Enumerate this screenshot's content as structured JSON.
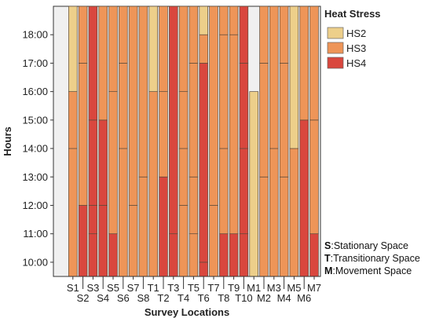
{
  "chart_data": {
    "type": "bar",
    "orientation": "stacked-vertical",
    "xlabel": "Survey Locations",
    "ylabel": "Hours",
    "y_unit": "hour of day",
    "ylim": [
      9.5,
      19.0
    ],
    "yticks": [
      {
        "value": 10,
        "label": "10:00"
      },
      {
        "value": 11,
        "label": "11:00"
      },
      {
        "value": 12,
        "label": "12:00"
      },
      {
        "value": 13,
        "label": "13:00"
      },
      {
        "value": 14,
        "label": "14:00"
      },
      {
        "value": 15,
        "label": "15:00"
      },
      {
        "value": 16,
        "label": "16:00"
      },
      {
        "value": 17,
        "label": "17:00"
      },
      {
        "value": 18,
        "label": "18:00"
      }
    ],
    "categories": [
      "S1",
      "S2",
      "S3",
      "S4",
      "S5",
      "S6",
      "S7",
      "S8",
      "T1",
      "T2",
      "T3",
      "T4",
      "T5",
      "T6",
      "T7",
      "T8",
      "T9",
      "T10",
      "M1",
      "M2",
      "M3",
      "M4",
      "M5",
      "M6",
      "M7"
    ],
    "legend": {
      "title": "Heat Stress",
      "placement": "top-right",
      "entries": [
        {
          "name": "HS2",
          "color": "#EDCF8A"
        },
        {
          "name": "HS3",
          "color": "#EE9558"
        },
        {
          "name": "HS4",
          "color": "#D9473E"
        }
      ]
    },
    "series_colors": {
      "HS2": "#EDCF8A",
      "HS3": "#EE9558",
      "HS4": "#D9473E"
    },
    "bars": [
      {
        "category": "S1",
        "segments": [
          [
            "HS3",
            9.5,
            14
          ],
          [
            "HS3",
            14,
            16
          ],
          [
            "HS2",
            16,
            19
          ]
        ]
      },
      {
        "category": "S2",
        "segments": [
          [
            "HS4",
            9.5,
            12
          ],
          [
            "HS3",
            12,
            17
          ],
          [
            "HS3",
            17,
            19
          ]
        ]
      },
      {
        "category": "S3",
        "segments": [
          [
            "HS4",
            9.5,
            11
          ],
          [
            "HS4",
            11,
            12
          ],
          [
            "HS4",
            12,
            15
          ],
          [
            "HS4",
            15,
            19
          ]
        ]
      },
      {
        "category": "S4",
        "segments": [
          [
            "HS4",
            9.5,
            12
          ],
          [
            "HS4",
            12,
            15
          ],
          [
            "HS3",
            15,
            19
          ]
        ]
      },
      {
        "category": "S5",
        "segments": [
          [
            "HS4",
            9.5,
            11
          ],
          [
            "HS3",
            11,
            16
          ],
          [
            "HS3",
            16,
            19
          ]
        ]
      },
      {
        "category": "S6",
        "segments": [
          [
            "HS3",
            9.5,
            14
          ],
          [
            "HS3",
            14,
            17
          ],
          [
            "HS3",
            17,
            19
          ]
        ]
      },
      {
        "category": "S7",
        "segments": [
          [
            "HS3",
            9.5,
            12
          ],
          [
            "HS3",
            12,
            19
          ]
        ]
      },
      {
        "category": "S8",
        "segments": [
          [
            "HS3",
            9.5,
            13
          ],
          [
            "HS3",
            13,
            19
          ]
        ]
      },
      {
        "category": "T1",
        "segments": [
          [
            "HS3",
            9.5,
            16
          ],
          [
            "HS2",
            16,
            19
          ]
        ]
      },
      {
        "category": "T2",
        "segments": [
          [
            "HS4",
            9.5,
            13
          ],
          [
            "HS3",
            13,
            16
          ],
          [
            "HS3",
            16,
            19
          ]
        ]
      },
      {
        "category": "T3",
        "segments": [
          [
            "HS4",
            9.5,
            11
          ],
          [
            "HS4",
            11,
            19
          ]
        ]
      },
      {
        "category": "T4",
        "segments": [
          [
            "HS3",
            9.5,
            12
          ],
          [
            "HS3",
            12,
            14
          ],
          [
            "HS3",
            14,
            16
          ],
          [
            "HS3",
            16,
            19
          ]
        ]
      },
      {
        "category": "T5",
        "segments": [
          [
            "HS3",
            9.5,
            11
          ],
          [
            "HS3",
            11,
            13
          ],
          [
            "HS3",
            13,
            17
          ],
          [
            "HS3",
            17,
            19
          ]
        ]
      },
      {
        "category": "T6",
        "segments": [
          [
            "HS4",
            9.5,
            10
          ],
          [
            "HS4",
            10,
            17
          ],
          [
            "HS3",
            17,
            18
          ],
          [
            "HS2",
            18,
            19
          ]
        ]
      },
      {
        "category": "T7",
        "segments": [
          [
            "HS3",
            9.5,
            12
          ],
          [
            "HS3",
            12,
            19
          ]
        ]
      },
      {
        "category": "T8",
        "segments": [
          [
            "HS4",
            9.5,
            11
          ],
          [
            "HS3",
            11,
            14
          ],
          [
            "HS3",
            14,
            18
          ],
          [
            "HS3",
            18,
            19
          ]
        ]
      },
      {
        "category": "T9",
        "segments": [
          [
            "HS4",
            9.5,
            11
          ],
          [
            "HS3",
            11,
            18
          ],
          [
            "HS3",
            18,
            19
          ]
        ]
      },
      {
        "category": "T10",
        "segments": [
          [
            "HS4",
            9.5,
            11
          ],
          [
            "HS4",
            11,
            14
          ],
          [
            "HS4",
            14,
            17
          ],
          [
            "HS4",
            17,
            19
          ]
        ]
      },
      {
        "category": "M1",
        "segments": [
          [
            "HS2",
            9.5,
            16
          ]
        ]
      },
      {
        "category": "M2",
        "segments": [
          [
            "HS3",
            9.5,
            13
          ],
          [
            "HS3",
            13,
            17
          ],
          [
            "HS3",
            17,
            19
          ]
        ]
      },
      {
        "category": "M3",
        "segments": [
          [
            "HS3",
            9.5,
            14
          ],
          [
            "HS3",
            14,
            19
          ]
        ]
      },
      {
        "category": "M4",
        "segments": [
          [
            "HS3",
            9.5,
            13
          ],
          [
            "HS3",
            13,
            17
          ],
          [
            "HS3",
            17,
            19
          ]
        ]
      },
      {
        "category": "M5",
        "segments": [
          [
            "HS3",
            9.5,
            14
          ],
          [
            "HS2",
            14,
            19
          ]
        ]
      },
      {
        "category": "M6",
        "segments": [
          [
            "HS4",
            9.5,
            15
          ],
          [
            "HS3",
            15,
            19
          ]
        ]
      },
      {
        "category": "M7",
        "segments": [
          [
            "HS4",
            9.5,
            11
          ],
          [
            "HS3",
            11,
            15
          ],
          [
            "HS3",
            15,
            19
          ]
        ]
      }
    ]
  },
  "notes": [
    {
      "key": "S",
      "text": ":Stationary Space"
    },
    {
      "key": "T",
      "text": ":Transitionary Space"
    },
    {
      "key": "M",
      "text": ":Movement Space"
    }
  ]
}
